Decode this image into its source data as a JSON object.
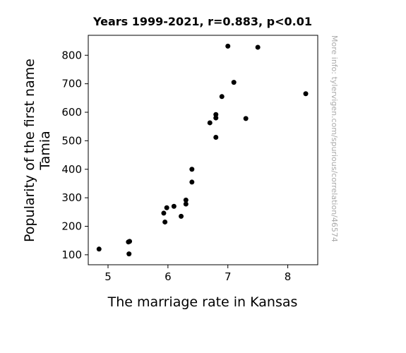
{
  "chart_data": {
    "type": "scatter",
    "title": "Years 1999-2021, r=0.883, p<0.01",
    "xlabel": "The marriage rate in Kansas",
    "ylabel_lines": [
      "Popularity of the first name",
      "Tamia"
    ],
    "watermark": "More info: tylervigen.com/spurious/correlation/46574",
    "xlim": [
      4.67,
      8.5
    ],
    "ylim": [
      65,
      870
    ],
    "xticks": [
      5,
      6,
      7,
      8
    ],
    "yticks": [
      100,
      200,
      300,
      400,
      500,
      600,
      700,
      800
    ],
    "grid": false,
    "point_color": "#000000",
    "points": [
      {
        "x": 4.85,
        "y": 120
      },
      {
        "x": 5.35,
        "y": 103
      },
      {
        "x": 5.34,
        "y": 145
      },
      {
        "x": 5.36,
        "y": 147
      },
      {
        "x": 5.95,
        "y": 215
      },
      {
        "x": 5.93,
        "y": 246
      },
      {
        "x": 5.98,
        "y": 265
      },
      {
        "x": 6.1,
        "y": 270
      },
      {
        "x": 6.22,
        "y": 235
      },
      {
        "x": 6.3,
        "y": 278
      },
      {
        "x": 6.3,
        "y": 292
      },
      {
        "x": 6.4,
        "y": 355
      },
      {
        "x": 6.4,
        "y": 400
      },
      {
        "x": 6.7,
        "y": 563
      },
      {
        "x": 6.8,
        "y": 512
      },
      {
        "x": 6.8,
        "y": 580
      },
      {
        "x": 6.8,
        "y": 592
      },
      {
        "x": 6.9,
        "y": 655
      },
      {
        "x": 7.0,
        "y": 832
      },
      {
        "x": 7.1,
        "y": 705
      },
      {
        "x": 7.3,
        "y": 578
      },
      {
        "x": 7.5,
        "y": 828
      },
      {
        "x": 8.3,
        "y": 665
      }
    ]
  }
}
